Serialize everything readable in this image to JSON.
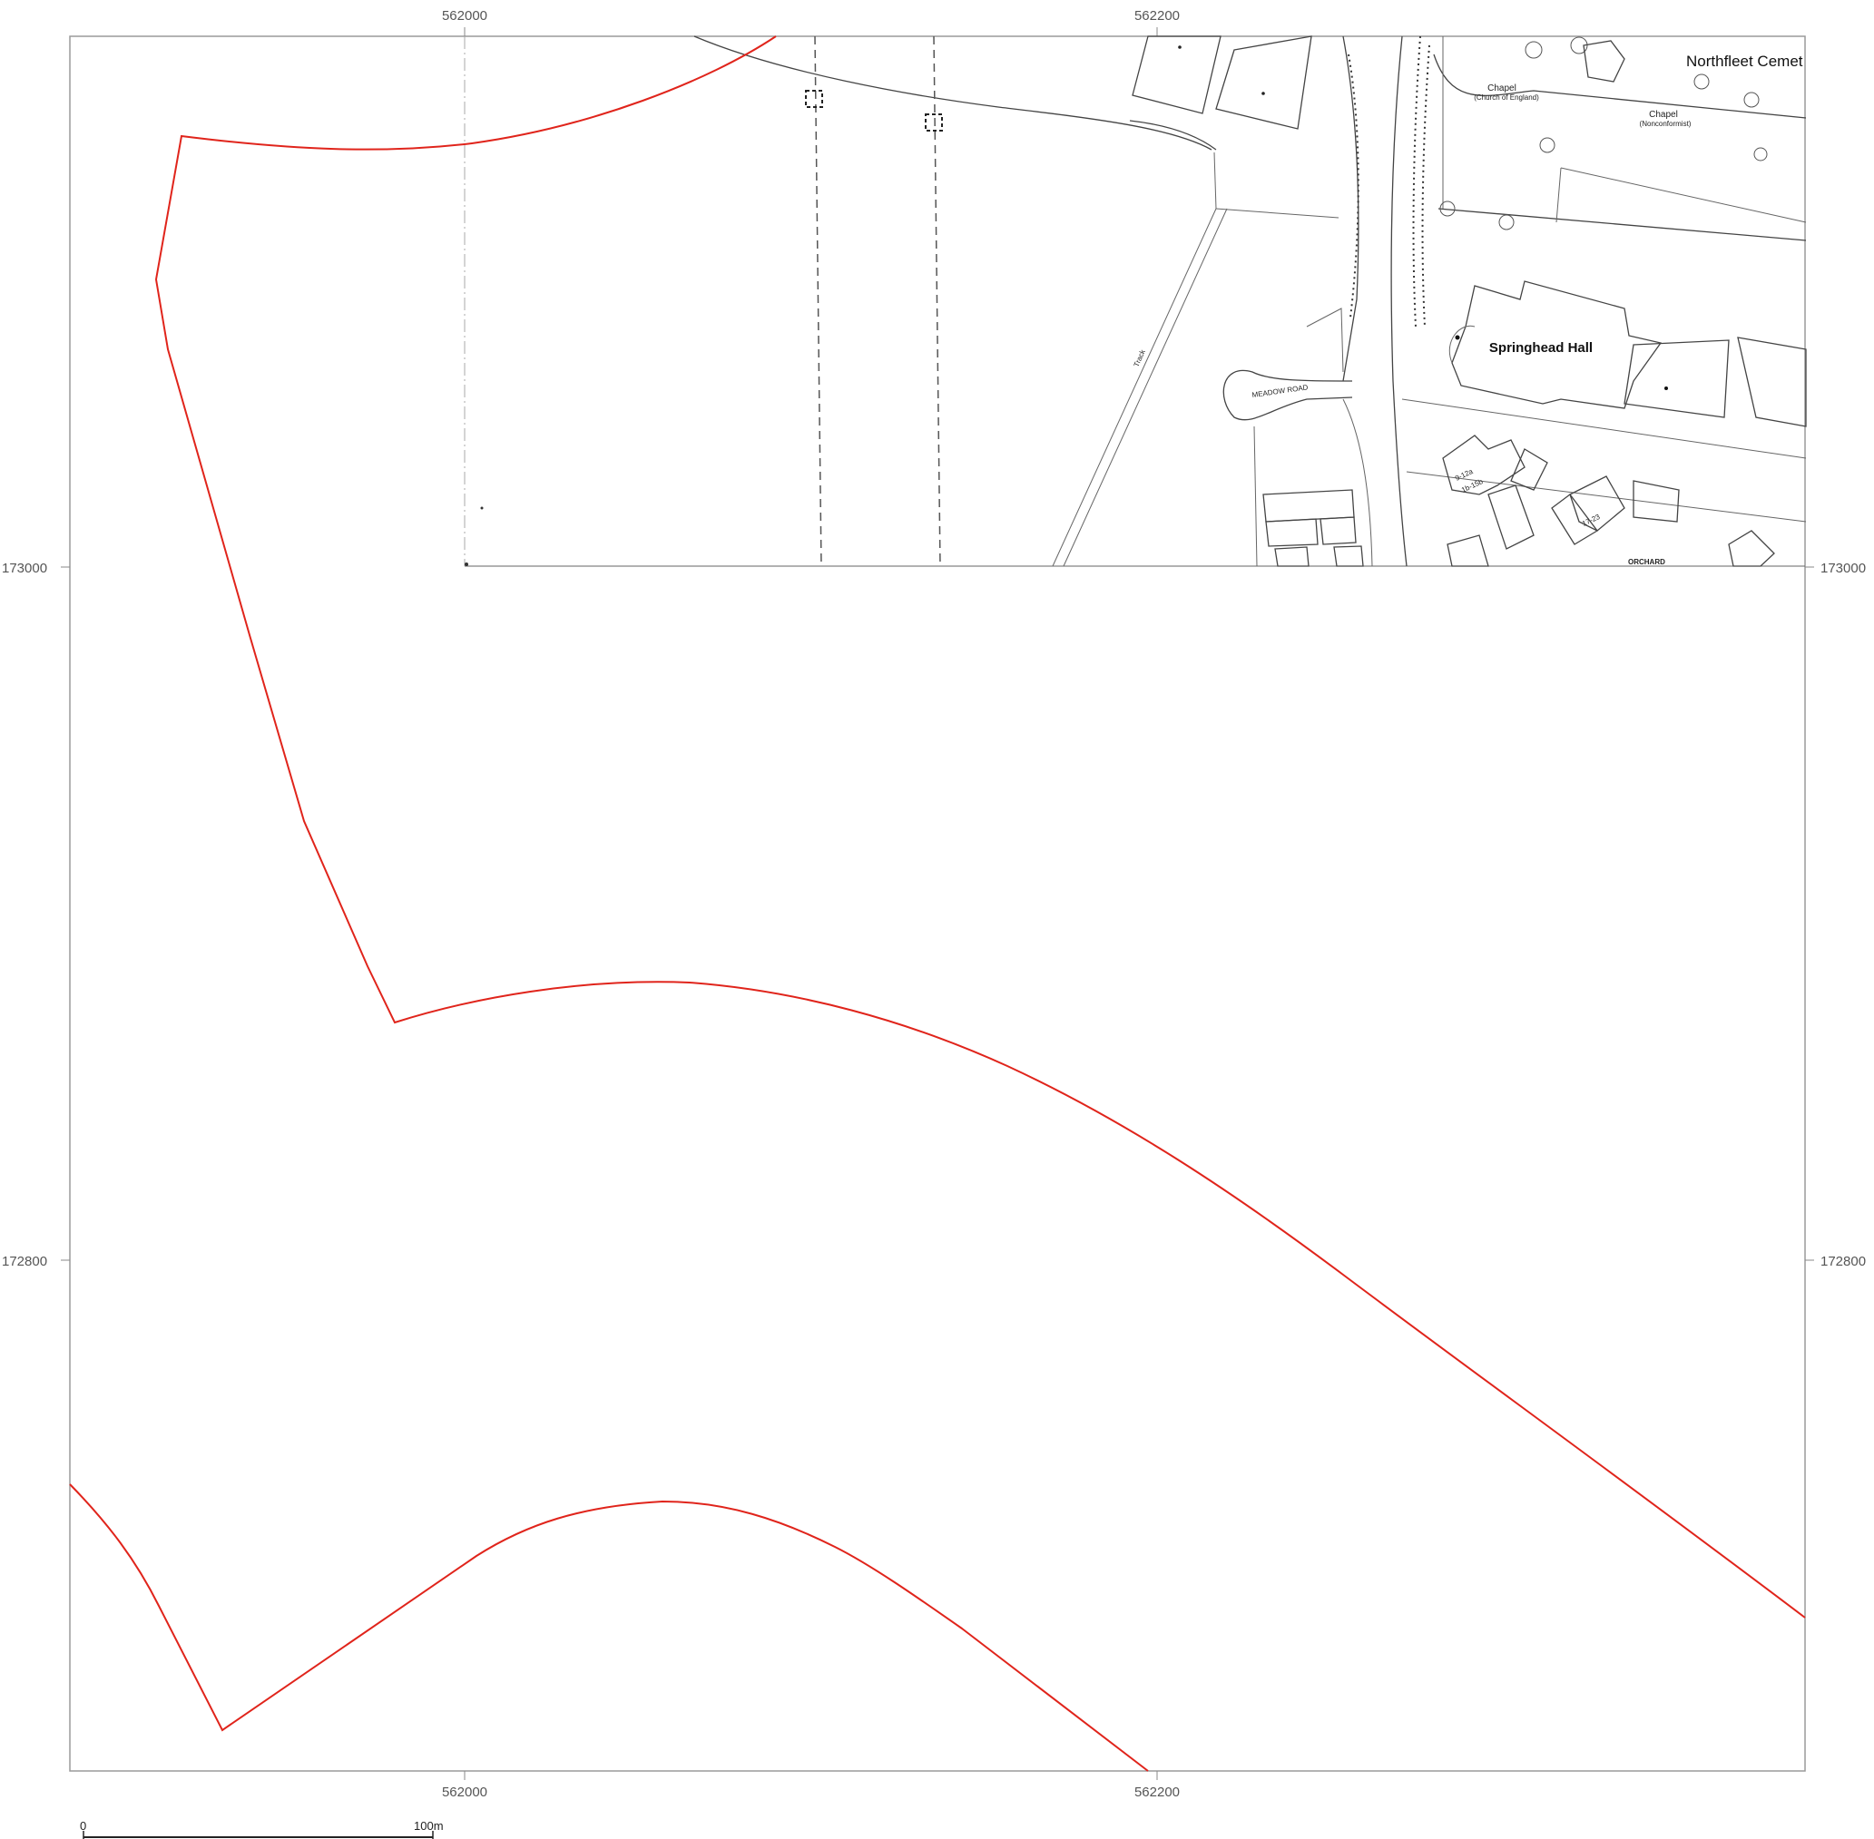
{
  "grid": {
    "eastings": [
      "562000",
      "562200"
    ],
    "northings": [
      "173000",
      "172800"
    ]
  },
  "labels": {
    "cemetery": "Northfleet Cemet",
    "chapel_ce": "Chapel",
    "chapel_ce_sub": "(Church of England)",
    "chapel_nc": "Chapel",
    "chapel_nc_sub": "(Nonconformist)",
    "hall": "Springhead Hall",
    "road": "MEADOW ROAD",
    "track": "Track",
    "orchard": "ORCHARD",
    "units_a": "9-12a",
    "units_b": "1b-15b",
    "units_c": "17-23"
  },
  "scale_bar": {
    "start_label": "0",
    "end_label": "100m"
  },
  "colors": {
    "site_boundary": "#e0241b",
    "frame": "#9a9a9a",
    "basemap": "#444444"
  }
}
